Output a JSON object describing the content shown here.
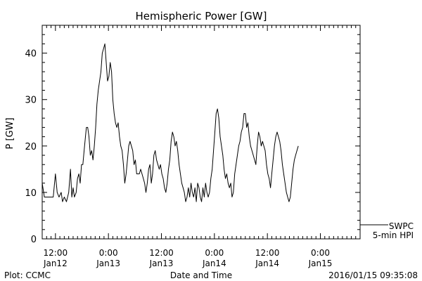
{
  "chart_data": {
    "type": "line",
    "title": "Hemispheric Power [GW]",
    "ylabel": "P [GW]",
    "xlabel": "Date and Time",
    "ylim": [
      0,
      46
    ],
    "xlim_hours_from_first_label": [
      -3,
      69
    ],
    "y_ticks": [
      0,
      10,
      20,
      30,
      40
    ],
    "x_ticks": [
      {
        "top": "12:00",
        "bottom": "Jan12"
      },
      {
        "top": "0:00",
        "bottom": "Jan13"
      },
      {
        "top": "12:00",
        "bottom": "Jan13"
      },
      {
        "top": "0:00",
        "bottom": "Jan14"
      },
      {
        "top": "12:00",
        "bottom": "Jan14"
      },
      {
        "top": "0:00",
        "bottom": "Jan15"
      }
    ],
    "legend": {
      "position": "bottom-right",
      "lines": [
        "SWPC",
        "5-min HPI"
      ]
    },
    "grid": false,
    "series": [
      {
        "name": "SWPC 5-min HPI",
        "color": "#000000",
        "points": [
          [
            -3.0,
            12
          ],
          [
            -2.5,
            9
          ],
          [
            -1.5,
            9
          ],
          [
            -0.5,
            9
          ],
          [
            0.0,
            14
          ],
          [
            0.4,
            10
          ],
          [
            0.8,
            9
          ],
          [
            1.3,
            10
          ],
          [
            1.6,
            8
          ],
          [
            2.0,
            9
          ],
          [
            2.5,
            8
          ],
          [
            3.0,
            10
          ],
          [
            3.4,
            15
          ],
          [
            3.7,
            9
          ],
          [
            4.0,
            11
          ],
          [
            4.3,
            9
          ],
          [
            4.7,
            10
          ],
          [
            5.0,
            13
          ],
          [
            5.3,
            14
          ],
          [
            5.6,
            12
          ],
          [
            5.9,
            16
          ],
          [
            6.2,
            16
          ],
          [
            6.5,
            19
          ],
          [
            6.8,
            22
          ],
          [
            7.0,
            24
          ],
          [
            7.3,
            24
          ],
          [
            7.6,
            22
          ],
          [
            7.9,
            18
          ],
          [
            8.2,
            19
          ],
          [
            8.5,
            17
          ],
          [
            8.8,
            20
          ],
          [
            9.1,
            24
          ],
          [
            9.4,
            29
          ],
          [
            9.7,
            32
          ],
          [
            10.0,
            34
          ],
          [
            10.3,
            36
          ],
          [
            10.6,
            40
          ],
          [
            10.9,
            41
          ],
          [
            11.2,
            42
          ],
          [
            11.5,
            38
          ],
          [
            11.8,
            34
          ],
          [
            12.1,
            35
          ],
          [
            12.4,
            38
          ],
          [
            12.7,
            36
          ],
          [
            13.0,
            30
          ],
          [
            13.3,
            27
          ],
          [
            13.6,
            25
          ],
          [
            13.9,
            24
          ],
          [
            14.2,
            25
          ],
          [
            14.5,
            22
          ],
          [
            14.8,
            20
          ],
          [
            15.1,
            19
          ],
          [
            15.4,
            16
          ],
          [
            15.7,
            12
          ],
          [
            16.0,
            14
          ],
          [
            16.3,
            17
          ],
          [
            16.6,
            20
          ],
          [
            16.9,
            21
          ],
          [
            17.2,
            20
          ],
          [
            17.5,
            19
          ],
          [
            17.8,
            16
          ],
          [
            18.1,
            17
          ],
          [
            18.4,
            14
          ],
          [
            18.7,
            14
          ],
          [
            19.0,
            14
          ],
          [
            19.3,
            15
          ],
          [
            19.6,
            14
          ],
          [
            19.9,
            13
          ],
          [
            20.2,
            12
          ],
          [
            20.5,
            10
          ],
          [
            20.8,
            12
          ],
          [
            21.1,
            15
          ],
          [
            21.4,
            16
          ],
          [
            21.7,
            12
          ],
          [
            22.0,
            14
          ],
          [
            22.3,
            18
          ],
          [
            22.6,
            19
          ],
          [
            22.9,
            17
          ],
          [
            23.2,
            16
          ],
          [
            23.5,
            15
          ],
          [
            23.8,
            16
          ],
          [
            24.1,
            14
          ],
          [
            24.4,
            13
          ],
          [
            24.7,
            11
          ],
          [
            25.0,
            10
          ],
          [
            25.3,
            12
          ],
          [
            25.6,
            15
          ],
          [
            25.9,
            17
          ],
          [
            26.2,
            21
          ],
          [
            26.5,
            23
          ],
          [
            26.8,
            22
          ],
          [
            27.1,
            20
          ],
          [
            27.4,
            21
          ],
          [
            27.7,
            19
          ],
          [
            28.0,
            16
          ],
          [
            28.3,
            14
          ],
          [
            28.6,
            12
          ],
          [
            28.9,
            11
          ],
          [
            29.2,
            10
          ],
          [
            29.5,
            8
          ],
          [
            29.8,
            9
          ],
          [
            30.1,
            11
          ],
          [
            30.4,
            9
          ],
          [
            30.7,
            12
          ],
          [
            31.0,
            10
          ],
          [
            31.3,
            9
          ],
          [
            31.6,
            11
          ],
          [
            31.9,
            8
          ],
          [
            32.2,
            12
          ],
          [
            32.5,
            11
          ],
          [
            32.8,
            9
          ],
          [
            33.1,
            8
          ],
          [
            33.4,
            11
          ],
          [
            33.7,
            9
          ],
          [
            34.0,
            12
          ],
          [
            34.3,
            10
          ],
          [
            34.6,
            9
          ],
          [
            34.9,
            10
          ],
          [
            35.2,
            13
          ],
          [
            35.5,
            15
          ],
          [
            35.8,
            19
          ],
          [
            36.1,
            23
          ],
          [
            36.4,
            27
          ],
          [
            36.7,
            28
          ],
          [
            37.0,
            26
          ],
          [
            37.3,
            22
          ],
          [
            37.6,
            20
          ],
          [
            37.9,
            18
          ],
          [
            38.2,
            15
          ],
          [
            38.5,
            13
          ],
          [
            38.8,
            14
          ],
          [
            39.1,
            12
          ],
          [
            39.4,
            11
          ],
          [
            39.7,
            12
          ],
          [
            40.0,
            9
          ],
          [
            40.3,
            10
          ],
          [
            40.6,
            14
          ],
          [
            40.9,
            16
          ],
          [
            41.2,
            18
          ],
          [
            41.5,
            20
          ],
          [
            41.8,
            21
          ],
          [
            42.1,
            23
          ],
          [
            42.4,
            24
          ],
          [
            42.7,
            27
          ],
          [
            43.0,
            27
          ],
          [
            43.3,
            24
          ],
          [
            43.6,
            25
          ],
          [
            43.9,
            22
          ],
          [
            44.2,
            20
          ],
          [
            44.5,
            19
          ],
          [
            44.8,
            18
          ],
          [
            45.1,
            17
          ],
          [
            45.4,
            16
          ],
          [
            45.7,
            20
          ],
          [
            46.0,
            23
          ],
          [
            46.3,
            22
          ],
          [
            46.6,
            20
          ],
          [
            46.9,
            21
          ],
          [
            47.2,
            20
          ],
          [
            47.5,
            19
          ],
          [
            47.8,
            16
          ],
          [
            48.1,
            14
          ],
          [
            48.4,
            13
          ],
          [
            48.7,
            11
          ],
          [
            49.0,
            14
          ],
          [
            49.3,
            17
          ],
          [
            49.6,
            20
          ],
          [
            49.9,
            22
          ],
          [
            50.2,
            23
          ],
          [
            50.5,
            22
          ],
          [
            50.8,
            21
          ],
          [
            51.1,
            19
          ],
          [
            51.4,
            16
          ],
          [
            51.7,
            14
          ],
          [
            52.0,
            12
          ],
          [
            52.3,
            10
          ],
          [
            52.6,
            9
          ],
          [
            52.9,
            8
          ],
          [
            53.2,
            9
          ],
          [
            53.5,
            12
          ],
          [
            53.8,
            15
          ],
          [
            54.1,
            17
          ],
          [
            54.4,
            18
          ],
          [
            54.7,
            19
          ],
          [
            55.0,
            20
          ]
        ]
      }
    ]
  },
  "footer": {
    "left": "Plot: CCMC",
    "center": "Date and Time",
    "right": "2016/01/15 09:35:08"
  }
}
